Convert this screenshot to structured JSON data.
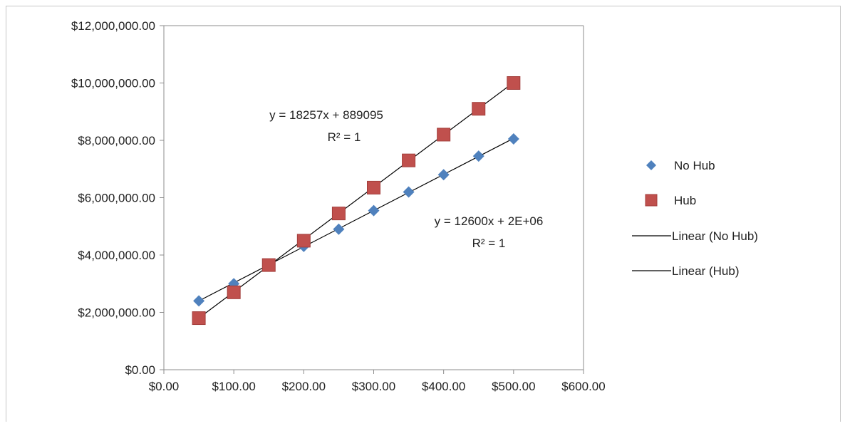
{
  "chart_data": {
    "type": "scatter",
    "title": "",
    "xlabel": "",
    "ylabel": "",
    "xlim": [
      0,
      600
    ],
    "ylim": [
      0,
      12000000
    ],
    "x_ticks": [
      0,
      100,
      200,
      300,
      400,
      500,
      600
    ],
    "y_ticks": [
      0,
      2000000,
      4000000,
      6000000,
      8000000,
      10000000,
      12000000
    ],
    "x_tick_labels": [
      "$0.00",
      "$100.00",
      "$200.00",
      "$300.00",
      "$400.00",
      "$500.00",
      "$600.00"
    ],
    "y_tick_labels": [
      "$0.00",
      "$2,000,000.00",
      "$4,000,000.00",
      "$6,000,000.00",
      "$8,000,000.00",
      "$10,000,000.00",
      "$12,000,000.00"
    ],
    "grid": false,
    "legend_position": "right",
    "series": [
      {
        "name": "No Hub",
        "marker": "diamond",
        "color": "#4f81bd",
        "x": [
          50,
          100,
          150,
          200,
          250,
          300,
          350,
          400,
          450,
          500
        ],
        "y": [
          2400000,
          3000000,
          3650000,
          4300000,
          4900000,
          5550000,
          6200000,
          6800000,
          7450000,
          8050000
        ]
      },
      {
        "name": "Hub",
        "marker": "square",
        "color": "#c0504d",
        "x": [
          50,
          100,
          150,
          200,
          250,
          300,
          350,
          400,
          450,
          500
        ],
        "y": [
          1800000,
          2700000,
          3650000,
          4500000,
          5450000,
          6350000,
          7300000,
          8200000,
          9100000,
          10000000
        ]
      }
    ],
    "trendlines": [
      {
        "name": "Linear (No Hub)",
        "slope": 12600,
        "intercept": 1770000,
        "x_range": [
          50,
          500
        ],
        "equation": "y = 12600x + 2E+06",
        "r2": "R² = 1"
      },
      {
        "name": "Linear (Hub)",
        "slope": 18257,
        "intercept": 889095,
        "x_range": [
          50,
          500
        ],
        "equation": "y = 18257x + 889095",
        "r2": "R² = 1"
      }
    ],
    "legend": [
      "No Hub",
      "Hub",
      "Linear (No Hub)",
      "Linear (Hub)"
    ]
  }
}
